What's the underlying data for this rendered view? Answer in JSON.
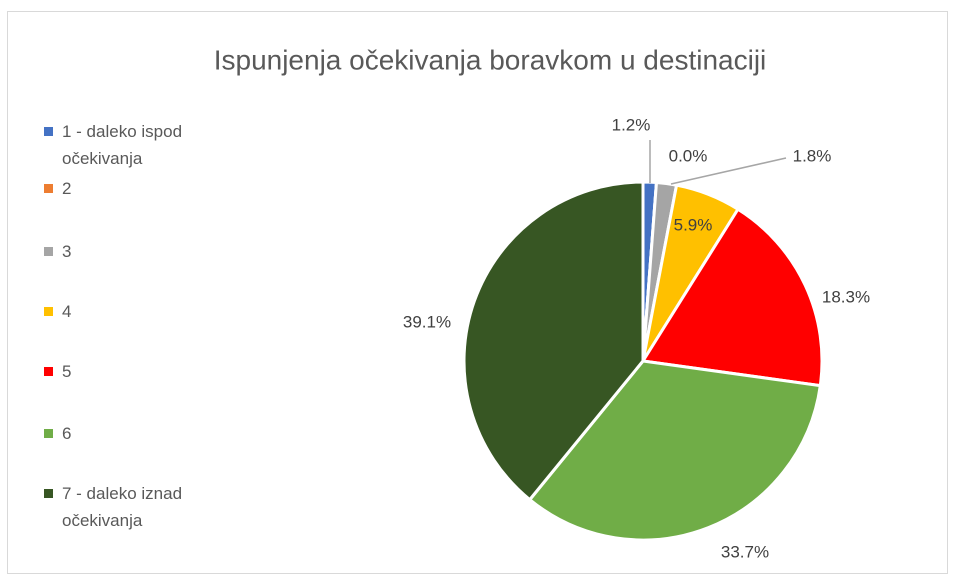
{
  "chart_data": {
    "type": "pie",
    "title": "Ispunjenja očekivanja boravkom u destinaciji",
    "categories": [
      "1 - daleko ispod očekivanja",
      "2",
      "3",
      "4",
      "5",
      "6",
      "7 - daleko iznad očekivanja"
    ],
    "values": [
      1.2,
      0.0,
      1.8,
      5.9,
      18.3,
      33.7,
      39.1
    ],
    "value_labels": [
      "1.2%",
      "0.0%",
      "1.8%",
      "5.9%",
      "18.3%",
      "33.7%",
      "39.1%"
    ],
    "colors": [
      "#4472c4",
      "#ed7d31",
      "#a5a5a5",
      "#ffc000",
      "#ff0000",
      "#70ad47",
      "#375623"
    ],
    "legend": "left"
  }
}
